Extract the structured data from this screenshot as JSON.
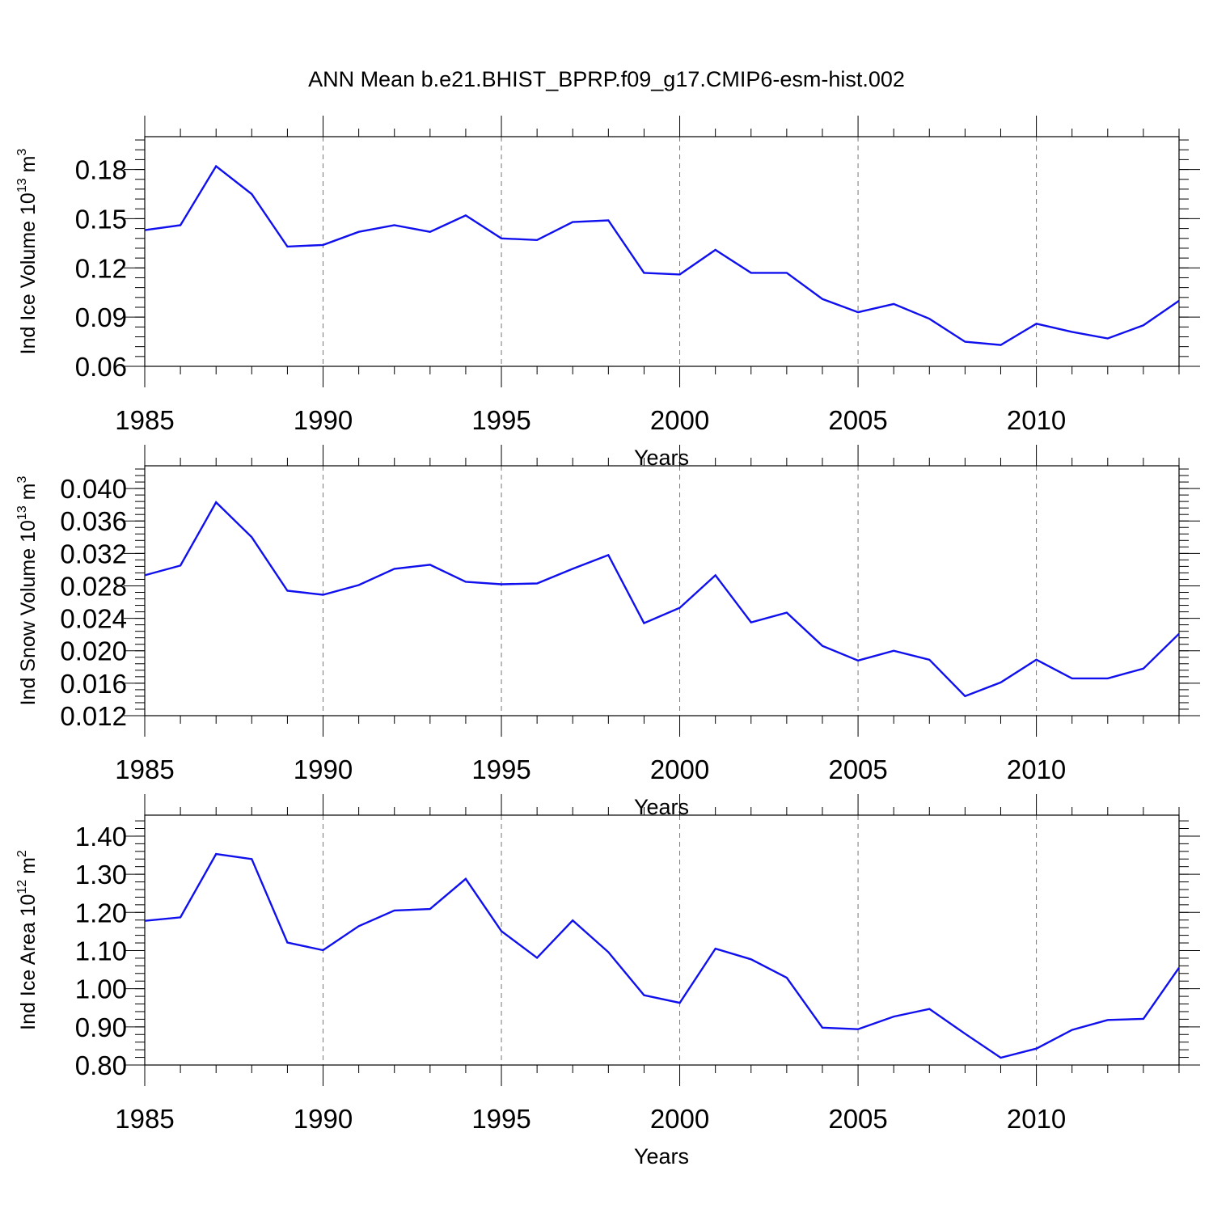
{
  "title": "ANN Mean b.e21.BHIST_BPRP.f09_g17.CMIP6-esm-hist.002",
  "colors": {
    "line": "#1010ee",
    "frame": "#000000",
    "grid": "#777777"
  },
  "chart_data": [
    {
      "type": "line",
      "title": "ANN Mean b.e21.BHIST_BPRP.f09_g17.CMIP6-esm-hist.002",
      "ylabel": {
        "text": "Ind Ice Volume 10",
        "exp": "13",
        "unit": " m",
        "unit_exp": "3"
      },
      "xlabel": "Years",
      "xlim": [
        1985,
        2014
      ],
      "ylim": [
        0.06,
        0.2
      ],
      "x_ticks": [
        1985,
        1990,
        1995,
        2000,
        2005,
        2010
      ],
      "x_tick_labels": [
        "1985",
        "1990",
        "1995",
        "2000",
        "2005",
        "2010"
      ],
      "y_ticks": [
        0.06,
        0.09,
        0.12,
        0.15,
        0.18
      ],
      "y_tick_labels": [
        "0.06",
        "0.09",
        "0.12",
        "0.15",
        "0.18"
      ],
      "y_minor_step": 0.006,
      "grid": "vertical dashed at major x ticks",
      "x": [
        1985,
        1986,
        1987,
        1988,
        1989,
        1990,
        1991,
        1992,
        1993,
        1994,
        1995,
        1996,
        1997,
        1998,
        1999,
        2000,
        2001,
        2002,
        2003,
        2004,
        2005,
        2006,
        2007,
        2008,
        2009,
        2010,
        2011,
        2012,
        2013,
        2014
      ],
      "series": [
        {
          "name": "Ind Ice Volume",
          "values": [
            0.143,
            0.146,
            0.182,
            0.165,
            0.133,
            0.134,
            0.142,
            0.146,
            0.142,
            0.152,
            0.138,
            0.137,
            0.148,
            0.149,
            0.117,
            0.116,
            0.131,
            0.117,
            0.117,
            0.101,
            0.093,
            0.098,
            0.089,
            0.075,
            0.073,
            0.086,
            0.081,
            0.077,
            0.085,
            0.1
          ]
        }
      ]
    },
    {
      "type": "line",
      "ylabel": {
        "text": "Ind Snow Volume 10",
        "exp": "13",
        "unit": " m",
        "unit_exp": "3"
      },
      "xlabel": "Years",
      "xlim": [
        1985,
        2014
      ],
      "ylim": [
        0.012,
        0.0428
      ],
      "x_ticks": [
        1985,
        1990,
        1995,
        2000,
        2005,
        2010
      ],
      "x_tick_labels": [
        "1985",
        "1990",
        "1995",
        "2000",
        "2005",
        "2010"
      ],
      "y_ticks": [
        0.012,
        0.016,
        0.02,
        0.024,
        0.028,
        0.032,
        0.036,
        0.04
      ],
      "y_tick_labels": [
        "0.012",
        "0.016",
        "0.020",
        "0.024",
        "0.028",
        "0.032",
        "0.036",
        "0.040"
      ],
      "y_minor_step": 0.0008,
      "grid": "vertical dashed at major x ticks",
      "x": [
        1985,
        1986,
        1987,
        1988,
        1989,
        1990,
        1991,
        1992,
        1993,
        1994,
        1995,
        1996,
        1997,
        1998,
        1999,
        2000,
        2001,
        2002,
        2003,
        2004,
        2005,
        2006,
        2007,
        2008,
        2009,
        2010,
        2011,
        2012,
        2013,
        2014
      ],
      "series": [
        {
          "name": "Ind Snow Volume",
          "values": [
            0.0293,
            0.0305,
            0.0383,
            0.034,
            0.0274,
            0.0269,
            0.0281,
            0.0301,
            0.0306,
            0.0285,
            0.0282,
            0.0283,
            0.0301,
            0.0318,
            0.0234,
            0.0253,
            0.0293,
            0.0235,
            0.0247,
            0.0206,
            0.0188,
            0.02,
            0.0189,
            0.0144,
            0.0161,
            0.0189,
            0.0166,
            0.0166,
            0.0178,
            0.0221
          ]
        }
      ]
    },
    {
      "type": "line",
      "ylabel": {
        "text": "Ind Ice Area 10",
        "exp": "12",
        "unit": " m",
        "unit_exp": "2"
      },
      "xlabel": "Years",
      "xlim": [
        1985,
        2014
      ],
      "ylim": [
        0.8,
        1.455
      ],
      "x_ticks": [
        1985,
        1990,
        1995,
        2000,
        2005,
        2010
      ],
      "x_tick_labels": [
        "1985",
        "1990",
        "1995",
        "2000",
        "2005",
        "2010"
      ],
      "y_ticks": [
        0.8,
        0.9,
        1.0,
        1.1,
        1.2,
        1.3,
        1.4
      ],
      "y_tick_labels": [
        "0.80",
        "0.90",
        "1.00",
        "1.10",
        "1.20",
        "1.30",
        "1.40"
      ],
      "y_minor_step": 0.02,
      "grid": "vertical dashed at major x ticks",
      "x": [
        1985,
        1986,
        1987,
        1988,
        1989,
        1990,
        1991,
        1992,
        1993,
        1994,
        1995,
        1996,
        1997,
        1998,
        1999,
        2000,
        2001,
        2002,
        2003,
        2004,
        2005,
        2006,
        2007,
        2008,
        2009,
        2010,
        2011,
        2012,
        2013,
        2014
      ],
      "series": [
        {
          "name": "Ind Ice Area",
          "values": [
            1.178,
            1.187,
            1.353,
            1.34,
            1.121,
            1.101,
            1.164,
            1.205,
            1.209,
            1.288,
            1.151,
            1.081,
            1.179,
            1.096,
            0.983,
            0.963,
            1.105,
            1.077,
            1.029,
            0.898,
            0.894,
            0.927,
            0.947,
            0.882,
            0.819,
            0.843,
            0.892,
            0.918,
            0.921,
            1.055
          ]
        }
      ]
    }
  ]
}
